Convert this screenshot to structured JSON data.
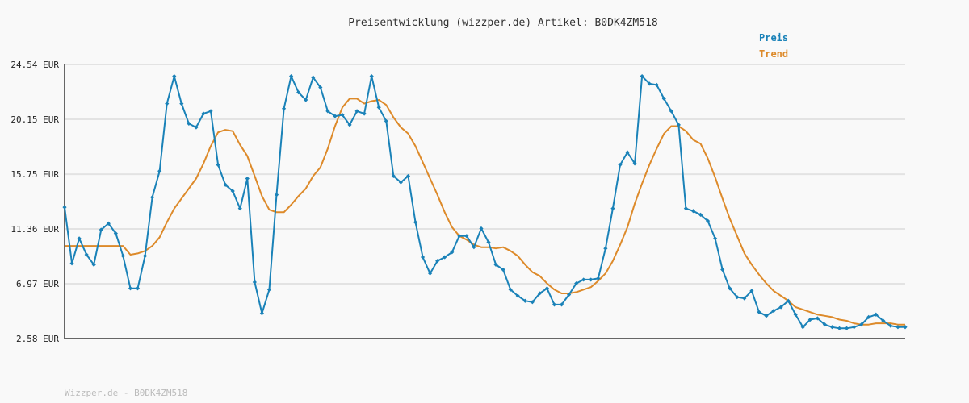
{
  "chart_data": {
    "type": "line",
    "title": "Preisentwicklung (wizzper.de) Artikel: B0DK4ZM518",
    "xlabel": "",
    "ylabel": "",
    "ylim": [
      2.58,
      24.54
    ],
    "y_ticks": [
      "24.54 EUR",
      "20.15 EUR",
      "15.75 EUR",
      "11.36 EUR",
      "6.97 EUR",
      "2.58 EUR"
    ],
    "y_tick_values": [
      24.54,
      20.15,
      15.75,
      11.36,
      6.97,
      2.58
    ],
    "grid": true,
    "legend_position": "top-right",
    "colors": {
      "preis": "#1a82b8",
      "trend": "#dd8a2a"
    },
    "series": [
      {
        "name": "Preis",
        "values": [
          13.1,
          8.6,
          10.6,
          9.3,
          8.5,
          11.3,
          11.8,
          11.0,
          9.2,
          6.6,
          6.6,
          9.2,
          13.9,
          16.0,
          21.4,
          23.6,
          21.4,
          19.8,
          19.5,
          20.6,
          20.8,
          16.5,
          14.9,
          14.4,
          13.0,
          15.4,
          7.1,
          4.6,
          6.5,
          14.1,
          21.0,
          23.6,
          22.3,
          21.7,
          23.5,
          22.7,
          20.8,
          20.4,
          20.5,
          19.7,
          20.8,
          20.6,
          23.6,
          21.1,
          20.0,
          15.6,
          15.1,
          15.6,
          11.9,
          9.1,
          7.8,
          8.8,
          9.1,
          9.5,
          10.8,
          10.8,
          9.9,
          11.4,
          10.3,
          8.5,
          8.1,
          6.5,
          6.0,
          5.6,
          5.5,
          6.2,
          6.6,
          5.3,
          5.3,
          6.1,
          7.0,
          7.3,
          7.3,
          7.4,
          9.8,
          13.0,
          16.5,
          17.5,
          16.6,
          23.6,
          23.0,
          22.9,
          21.8,
          20.8,
          19.7,
          13.0,
          12.8,
          12.5,
          12.0,
          10.6,
          8.1,
          6.6,
          5.9,
          5.8,
          6.4,
          4.7,
          4.4,
          4.8,
          5.1,
          5.6,
          4.5,
          3.5,
          4.1,
          4.2,
          3.7,
          3.5,
          3.4,
          3.4,
          3.5,
          3.7,
          4.3,
          4.5,
          4.0,
          3.6,
          3.5,
          3.5
        ]
      },
      {
        "name": "Trend",
        "values": [
          10.0,
          10.0,
          10.0,
          10.0,
          10.0,
          10.0,
          10.0,
          10.0,
          10.0,
          9.3,
          9.4,
          9.6,
          10.0,
          10.7,
          11.9,
          13.0,
          13.8,
          14.6,
          15.4,
          16.6,
          18.0,
          19.1,
          19.3,
          19.2,
          18.1,
          17.2,
          15.6,
          14.0,
          12.9,
          12.7,
          12.7,
          13.3,
          14.0,
          14.6,
          15.6,
          16.3,
          17.8,
          19.6,
          21.1,
          21.8,
          21.8,
          21.4,
          21.6,
          21.7,
          21.3,
          20.3,
          19.5,
          19.0,
          18.0,
          16.7,
          15.4,
          14.1,
          12.7,
          11.5,
          10.8,
          10.5,
          10.1,
          9.9,
          9.9,
          9.8,
          9.9,
          9.6,
          9.2,
          8.5,
          7.9,
          7.6,
          7.0,
          6.5,
          6.2,
          6.2,
          6.3,
          6.5,
          6.7,
          7.2,
          7.8,
          8.8,
          10.1,
          11.5,
          13.4,
          15.0,
          16.5,
          17.8,
          19.0,
          19.6,
          19.6,
          19.2,
          18.5,
          18.2,
          17.0,
          15.5,
          13.8,
          12.2,
          10.8,
          9.4,
          8.5,
          7.7,
          7.0,
          6.4,
          6.0,
          5.6,
          5.1,
          4.9,
          4.7,
          4.5,
          4.4,
          4.3,
          4.1,
          4.0,
          3.8,
          3.7,
          3.7,
          3.8,
          3.8,
          3.8,
          3.7,
          3.7
        ]
      }
    ]
  },
  "legend": {
    "preis_label": "Preis",
    "trend_label": "Trend"
  },
  "footer": "Wizzper.de - B0DK4ZM518"
}
